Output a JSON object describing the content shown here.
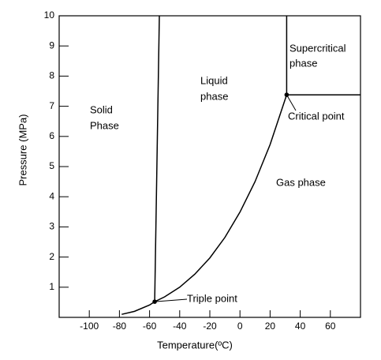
{
  "chart_data": {
    "type": "line",
    "xlabel": "Temperature(ºC)",
    "ylabel": "Pressure (MPa)",
    "xlim": [
      -120,
      80
    ],
    "ylim": [
      0,
      10
    ],
    "xticks": [
      -100,
      -80,
      -60,
      -40,
      -20,
      0,
      20,
      40,
      60
    ],
    "yticks": [
      1,
      2,
      3,
      4,
      5,
      6,
      7,
      8,
      9,
      10
    ],
    "color": "#000000",
    "lines": [
      {
        "x": [
          -78.5,
          -70,
          -60,
          -56.6,
          -50,
          -40,
          -30,
          -20,
          -10,
          0,
          10,
          20,
          31
        ],
        "y": [
          0.1,
          0.2,
          0.41,
          0.52,
          0.68,
          1.0,
          1.43,
          1.97,
          2.65,
          3.49,
          4.5,
          5.73,
          7.38
        ]
      },
      {
        "x": [
          -56.6,
          -53.5
        ],
        "y": [
          0.52,
          10
        ]
      },
      {
        "x": [
          31,
          31
        ],
        "y": [
          7.38,
          10
        ]
      },
      {
        "x": [
          31,
          80
        ],
        "y": [
          7.38,
          7.38
        ]
      }
    ],
    "points": [
      {
        "label": "Triple point",
        "x": -56.6,
        "y": 0.52
      },
      {
        "label": "Critical point",
        "x": 31,
        "y": 7.38
      }
    ],
    "annotations": [
      "Solid",
      "Phase",
      "Liquid",
      "phase",
      "Supercritical",
      "phase",
      "Gas phase"
    ]
  }
}
